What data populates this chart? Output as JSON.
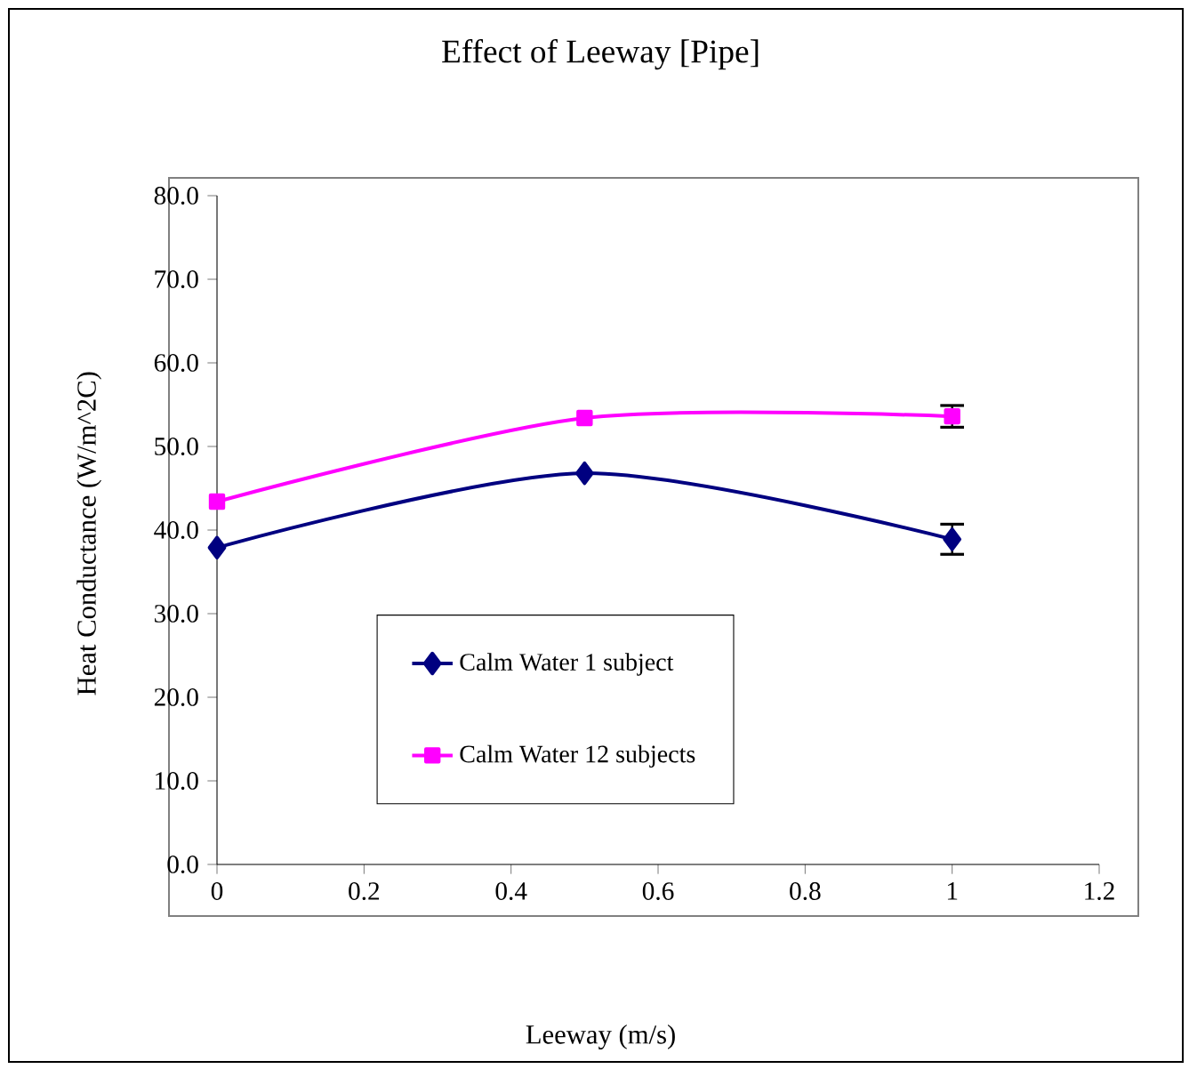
{
  "chart_data": {
    "type": "line",
    "title": "Effect of Leeway [Pipe]",
    "xlabel": "Leeway (m/s)",
    "ylabel": "Heat Conductance (W/m^2C)",
    "x": [
      0,
      0.5,
      1
    ],
    "series": [
      {
        "name": "Calm Water 1 subject",
        "color": "#000080",
        "marker": "diamond",
        "values": [
          37.9,
          46.8,
          38.9
        ],
        "errors": [
          null,
          null,
          1.8
        ]
      },
      {
        "name": "Calm Water 12 subjects",
        "color": "#ff00ff",
        "marker": "square",
        "values": [
          43.4,
          53.4,
          53.6
        ],
        "errors": [
          null,
          null,
          1.3
        ]
      }
    ],
    "xlim": [
      0,
      1.2
    ],
    "xticks": [
      0,
      0.2,
      0.4,
      0.6,
      0.8,
      1,
      1.2
    ],
    "ylim": [
      0,
      80
    ],
    "yticks": [
      {
        "value": 0,
        "label": "0.0"
      },
      {
        "value": 10,
        "label": "10.0"
      },
      {
        "value": 20,
        "label": "20.0"
      },
      {
        "value": 30,
        "label": "30.0"
      },
      {
        "value": 40,
        "label": "40.0"
      },
      {
        "value": 50,
        "label": "50.0"
      },
      {
        "value": 60,
        "label": "60.0"
      },
      {
        "value": 70,
        "label": "70.0"
      },
      {
        "value": 80,
        "label": "80.0"
      }
    ],
    "legend": "bottom",
    "grid": false
  }
}
